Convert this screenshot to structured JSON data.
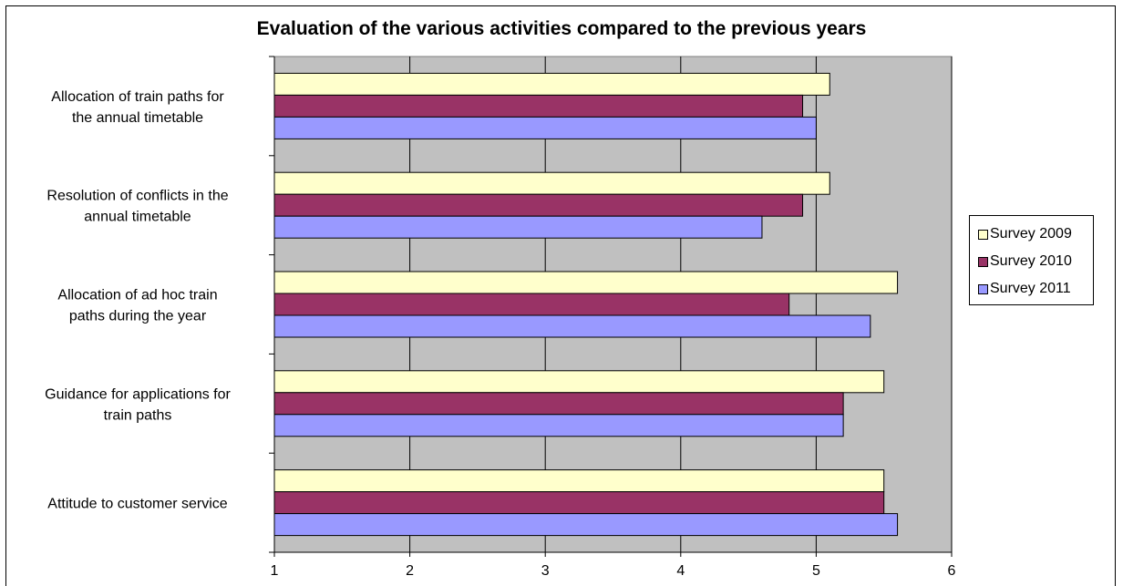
{
  "chart_data": {
    "type": "bar",
    "orientation": "horizontal",
    "title": "Evaluation of the various activities compared to the previous years",
    "categories": [
      [
        "Allocation of train paths for",
        "the annual timetable"
      ],
      [
        "Resolution of conflicts in the",
        "annual timetable"
      ],
      [
        "Allocation of ad hoc train",
        "paths during the year"
      ],
      [
        "Guidance for applications for",
        "train paths"
      ],
      [
        "Attitude to customer service"
      ]
    ],
    "series": [
      {
        "name": "Survey 2009",
        "color": "#FFFFCC",
        "values": [
          5.1,
          5.1,
          5.6,
          5.5,
          5.5
        ]
      },
      {
        "name": "Survey 2010",
        "color": "#993366",
        "values": [
          4.9,
          4.9,
          4.8,
          5.2,
          5.5
        ]
      },
      {
        "name": "Survey 2011",
        "color": "#9999FF",
        "values": [
          5.0,
          4.6,
          5.4,
          5.2,
          5.6
        ]
      }
    ],
    "xlim": [
      1,
      6
    ],
    "xticks": [
      1,
      2,
      3,
      4,
      5,
      6
    ],
    "grid": true,
    "plot_background": "#C0C0C0",
    "legend_position": "right"
  }
}
